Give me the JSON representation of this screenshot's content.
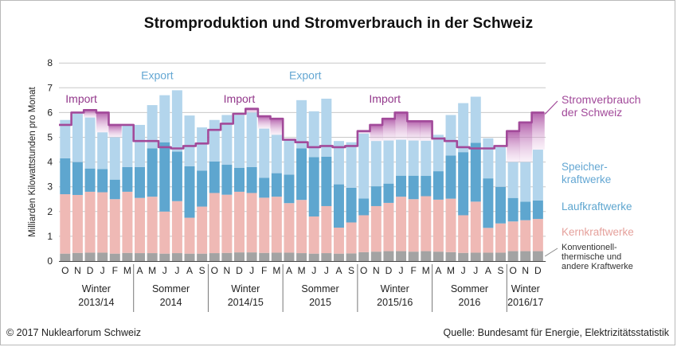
{
  "title": "Stromproduktion und Stromverbrauch in der Schweiz",
  "copyright": "© 2017 Nuklearforum Schweiz",
  "source": "Quelle: Bundesamt für Energie, Elektrizitätsstatistik",
  "colors": {
    "konventionell": "#a3a3a3",
    "kern": "#efb9b5",
    "lauf": "#5ea6cf",
    "speicher": "#b3d5ec",
    "verbrauch": "#a24a9a",
    "import_fill": "#cc8fc6",
    "export_text": "#64a7d3",
    "import_text": "#93388b",
    "grid": "#c8c8c8"
  },
  "chart_data": {
    "type": "bar",
    "stacked": true,
    "ylabel": "Milliarden Kilowattstunden pro Monat",
    "ylim": [
      0,
      8
    ],
    "yticks": [
      "0",
      "1",
      "2",
      "3",
      "4",
      "5",
      "6",
      "7",
      "8"
    ],
    "grid": true,
    "categories": [
      "O",
      "N",
      "D",
      "J",
      "F",
      "M",
      "A",
      "M",
      "J",
      "J",
      "A",
      "S",
      "O",
      "N",
      "D",
      "J",
      "F",
      "M",
      "A",
      "M",
      "J",
      "J",
      "A",
      "S",
      "O",
      "N",
      "D",
      "J",
      "F",
      "M",
      "A",
      "M",
      "J",
      "J",
      "A",
      "S",
      "O",
      "N",
      "D"
    ],
    "periods": [
      {
        "line1": "Winter",
        "line2": "2013/14",
        "start": 0,
        "count": 6
      },
      {
        "line1": "Sommer",
        "line2": "2014",
        "start": 6,
        "count": 6
      },
      {
        "line1": "Winter",
        "line2": "2014/15",
        "start": 12,
        "count": 6
      },
      {
        "line1": "Sommer",
        "line2": "2015",
        "start": 18,
        "count": 6
      },
      {
        "line1": "Winter",
        "line2": "2015/16",
        "start": 24,
        "count": 6
      },
      {
        "line1": "Sommer",
        "line2": "2016",
        "start": 30,
        "count": 6
      },
      {
        "line1": "Winter",
        "line2": "2016/17",
        "start": 36,
        "count": 3
      }
    ],
    "series": [
      {
        "name": "Konventionell-thermische und andere Kraftwerke",
        "key": "konventionell",
        "values": [
          0.3,
          0.33,
          0.34,
          0.34,
          0.3,
          0.33,
          0.32,
          0.32,
          0.3,
          0.32,
          0.3,
          0.3,
          0.32,
          0.33,
          0.35,
          0.35,
          0.33,
          0.34,
          0.34,
          0.32,
          0.3,
          0.32,
          0.3,
          0.31,
          0.36,
          0.38,
          0.4,
          0.4,
          0.38,
          0.4,
          0.38,
          0.36,
          0.33,
          0.34,
          0.34,
          0.34,
          0.4,
          0.4,
          0.4
        ]
      },
      {
        "name": "Kernkraftwerke",
        "key": "kern",
        "values": [
          2.4,
          2.34,
          2.46,
          2.44,
          2.2,
          2.47,
          2.23,
          2.28,
          1.7,
          2.1,
          1.45,
          1.9,
          2.43,
          2.35,
          2.45,
          2.4,
          2.23,
          2.26,
          2.0,
          2.15,
          1.5,
          1.9,
          1.05,
          1.25,
          1.49,
          1.84,
          1.95,
          2.2,
          2.12,
          2.22,
          2.1,
          2.16,
          1.52,
          2.06,
          1.0,
          1.18,
          1.2,
          1.25,
          1.3
        ]
      },
      {
        "name": "Laufkraftwerke",
        "key": "lauf",
        "values": [
          1.45,
          1.33,
          0.94,
          0.94,
          0.79,
          1.0,
          1.25,
          1.95,
          2.8,
          2.0,
          2.08,
          1.45,
          1.27,
          1.21,
          0.97,
          1.05,
          0.8,
          0.95,
          1.15,
          2.08,
          2.4,
          2.0,
          1.75,
          1.4,
          0.68,
          0.8,
          0.78,
          0.85,
          0.95,
          0.82,
          1.15,
          1.74,
          2.55,
          2.38,
          2.0,
          1.48,
          0.95,
          0.75,
          0.75
        ]
      },
      {
        "name": "Speicherkraftwerke",
        "key": "speicher",
        "values": [
          1.55,
          1.96,
          2.06,
          1.48,
          1.71,
          1.7,
          1.7,
          1.75,
          1.9,
          2.48,
          2.05,
          1.75,
          1.68,
          2.01,
          2.13,
          2.2,
          1.99,
          1.55,
          1.41,
          1.95,
          1.85,
          2.34,
          1.75,
          1.84,
          2.62,
          1.83,
          1.74,
          1.45,
          1.42,
          1.42,
          1.47,
          1.64,
          1.98,
          1.86,
          1.62,
          1.6,
          1.45,
          1.6,
          2.05
        ]
      }
    ],
    "verbrauch": {
      "name": "Stromverbrauch der Schweiz",
      "values": [
        5.5,
        6.0,
        6.1,
        6.0,
        5.5,
        5.5,
        4.85,
        4.85,
        4.6,
        4.55,
        4.65,
        4.75,
        5.3,
        5.55,
        5.95,
        6.15,
        5.85,
        5.75,
        4.9,
        4.8,
        4.6,
        4.65,
        4.6,
        4.65,
        5.25,
        5.5,
        5.75,
        6.0,
        5.65,
        5.65,
        4.95,
        4.85,
        4.6,
        4.55,
        4.55,
        4.65,
        5.25,
        5.6,
        6.0
      ]
    },
    "annotations": [
      {
        "text": "Import",
        "kind": "import",
        "index": 1.8,
        "y": 6.4
      },
      {
        "text": "Export",
        "kind": "export",
        "index": 7.9,
        "y": 7.35
      },
      {
        "text": "Import",
        "kind": "import",
        "index": 14.5,
        "y": 6.4
      },
      {
        "text": "Export",
        "kind": "export",
        "index": 19.8,
        "y": 7.35
      },
      {
        "text": "Import",
        "kind": "import",
        "index": 26.2,
        "y": 6.4
      }
    ],
    "legend": [
      {
        "key": "verbrauch",
        "lines": [
          "Stromverbrauch",
          "der Schweiz"
        ],
        "color_key": "verbrauch"
      },
      {
        "key": "speicher",
        "lines": [
          "Speicher-",
          "kraftwerke"
        ],
        "color_key": "export_text"
      },
      {
        "key": "lauf",
        "lines": [
          "Laufkraftwerke"
        ],
        "color_key": "lauf"
      },
      {
        "key": "kern",
        "lines": [
          "Kernkraftwerke"
        ],
        "color_key": "kern"
      },
      {
        "key": "konventionell",
        "lines": [
          "Konventionell-",
          "thermische und",
          "andere Kraftwerke"
        ],
        "color_key": "dark"
      }
    ]
  }
}
